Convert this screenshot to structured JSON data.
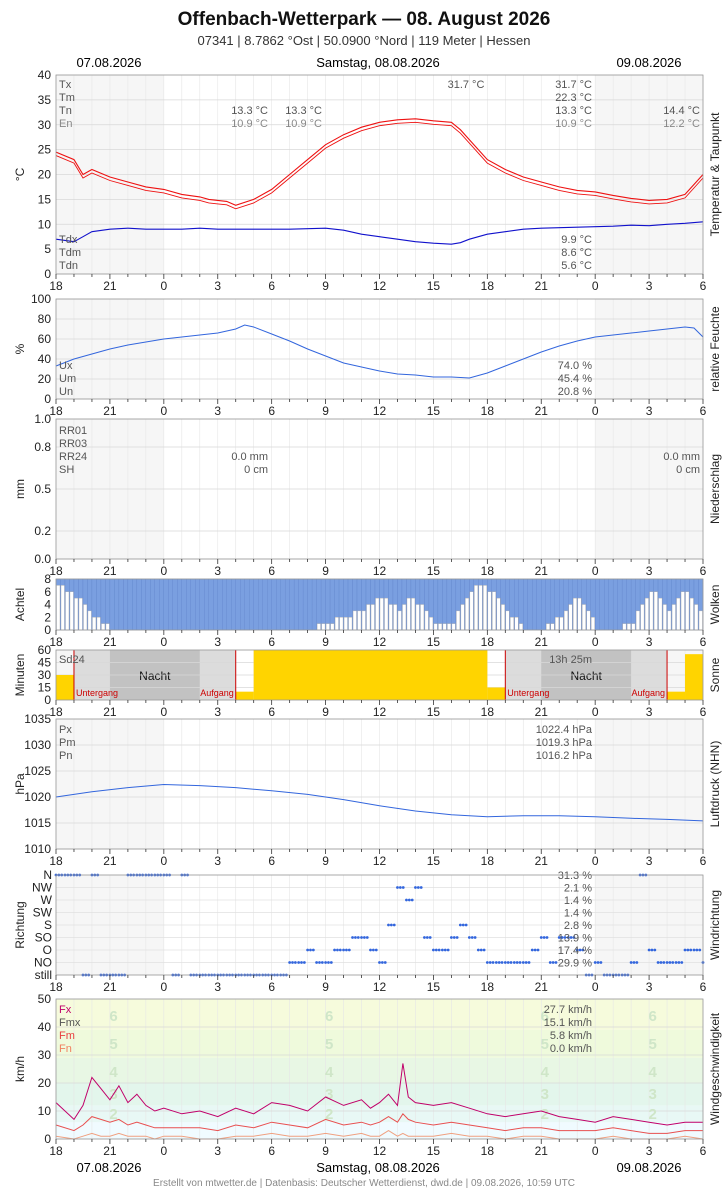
{
  "header": {
    "title": "Offenbach-Wetterpark  —  08. August 2026",
    "subtitle": "07341  |  8.7862 °Ost  |  50.0900 °Nord  |  119 Meter  |  Hessen",
    "date_left": "07.08.2026",
    "date_center": "Samstag, 08.08.2026",
    "date_right": "09.08.2026"
  },
  "footer": {
    "credit": "Erstellt von mtwetter.de | Datenbasis: Deutscher Wetterdienst, dwd.de | 09.08.2026, 10:59 UTC"
  },
  "x_ticks": [
    "18",
    "21",
    "0",
    "3",
    "6",
    "9",
    "12",
    "15",
    "18",
    "21",
    "0",
    "3",
    "6"
  ],
  "colors": {
    "temp": "#ee1111",
    "dew": "#1111cc",
    "blue": "#3366dd",
    "sun": "#ffd400",
    "cloud": "#7a9fe0",
    "wind_fx": "#c0006a",
    "wind_fm": "#e85050",
    "wind_fn": "#f0a080"
  },
  "chart_data": [
    {
      "id": "temp",
      "type": "line",
      "side_label": "Temperatur & Taupunkt",
      "ylabel": "°C",
      "ylim": [
        0,
        40
      ],
      "yticks": [
        "0",
        "5",
        "10",
        "15",
        "20",
        "25",
        "30",
        "35",
        "40"
      ],
      "labels_left": [
        "Tx",
        "Tm",
        "Tn",
        "En"
      ],
      "labels_left2": [
        "Tdx",
        "Tdm",
        "Tdn"
      ],
      "annotations": [
        {
          "text": "31.7 °C",
          "anchor": "peak"
        },
        {
          "text": "13.3 °C",
          "row": "Tn",
          "col": "a"
        },
        {
          "text": "10.9 °C",
          "row": "En",
          "col": "a"
        },
        {
          "text": "13.3 °C",
          "row": "Tn",
          "col": "b"
        },
        {
          "text": "10.9 °C",
          "row": "En",
          "col": "b"
        },
        {
          "text": "31.7 °C",
          "row": "Tx",
          "col": "c"
        },
        {
          "text": "22.3 °C",
          "row": "Tm",
          "col": "c"
        },
        {
          "text": "13.3 °C",
          "row": "Tn",
          "col": "c"
        },
        {
          "text": "10.9 °C",
          "row": "En",
          "col": "c"
        },
        {
          "text": "14.4 °C",
          "row": "Tn",
          "col": "d"
        },
        {
          "text": "12.2 °C",
          "row": "En",
          "col": "d"
        },
        {
          "text": "9.9 °C",
          "row": "Tdx",
          "col": "c"
        },
        {
          "text": "8.6 °C",
          "row": "Tdm",
          "col": "c"
        },
        {
          "text": "5.6 °C",
          "row": "Tdn",
          "col": "c"
        }
      ],
      "x_hours": [
        -6,
        -5,
        -4.5,
        -4,
        -3,
        -2,
        -1,
        0,
        1,
        2,
        2.5,
        3,
        3.5,
        4,
        5,
        6,
        7,
        8,
        9,
        10,
        11,
        12,
        13,
        14,
        15,
        16,
        16.5,
        17,
        18,
        19,
        20,
        21,
        22,
        23,
        24,
        25,
        26,
        27,
        28,
        29,
        30
      ],
      "series": [
        {
          "name": "Temperatur",
          "values": [
            24.5,
            23,
            20,
            21,
            19.5,
            18.5,
            17.5,
            17,
            16,
            15.5,
            15,
            14.8,
            14.6,
            13.8,
            15,
            17,
            20,
            23,
            26,
            28,
            29.5,
            30.5,
            31,
            31.2,
            30.8,
            30.5,
            29,
            27,
            23,
            21,
            19.5,
            18.5,
            17.5,
            16.8,
            16.5,
            15.8,
            15.2,
            14.8,
            15,
            16,
            20
          ]
        },
        {
          "name": "Taupunkt",
          "values": [
            7,
            6.5,
            7.5,
            8.5,
            9,
            9.2,
            9,
            9,
            9,
            9.2,
            9.1,
            9,
            9,
            9,
            9,
            9,
            9,
            9.1,
            9.2,
            8.8,
            8,
            7.5,
            7,
            6.5,
            6.2,
            6,
            6.3,
            7,
            8,
            8.5,
            9,
            9.2,
            9.3,
            9.4,
            9.5,
            9.6,
            9.8,
            9.7,
            10,
            10.2,
            10.5
          ]
        }
      ]
    },
    {
      "id": "hum",
      "type": "line",
      "side_label": "relative Feuchte",
      "ylabel": "%",
      "ylim": [
        0,
        100
      ],
      "yticks": [
        "0",
        "20",
        "40",
        "60",
        "80",
        "100"
      ],
      "labels_left": [
        "Ux",
        "Um",
        "Un"
      ],
      "annotations": [
        {
          "text": "74.0 %",
          "row": 0
        },
        {
          "text": "45.4 %",
          "row": 1
        },
        {
          "text": "20.8 %",
          "row": 2
        }
      ],
      "x_hours": [
        -6,
        -5,
        -4,
        -3,
        -2,
        -1,
        0,
        1,
        2,
        3,
        4,
        4.5,
        5,
        6,
        7,
        8,
        9,
        10,
        11,
        12,
        13,
        14,
        15,
        16,
        17,
        18,
        19,
        20,
        21,
        22,
        23,
        24,
        25,
        26,
        27,
        28,
        29,
        29.5,
        30
      ],
      "series": [
        {
          "name": "Feuchte",
          "values": [
            33,
            40,
            45,
            50,
            54,
            57,
            60,
            62,
            64,
            66,
            70,
            74,
            72,
            65,
            58,
            50,
            43,
            36,
            32,
            28,
            25,
            24,
            22,
            22,
            21,
            26,
            33,
            40,
            47,
            53,
            58,
            62,
            64,
            66,
            68,
            70,
            72,
            71,
            62
          ]
        }
      ]
    },
    {
      "id": "rain",
      "type": "bar",
      "side_label": "Niederschlag",
      "ylabel": "mm",
      "ylim": [
        0,
        1
      ],
      "yticks": [
        "0.0",
        "0.2",
        "0.5",
        "0.8",
        "1.0"
      ],
      "labels_left": [
        "RR01",
        "RR03",
        "RR24",
        "SH"
      ],
      "annotations": [
        {
          "text": "0.0 mm",
          "row": 2,
          "col": "a"
        },
        {
          "text": "0 cm",
          "row": 3,
          "col": "a"
        },
        {
          "text": "0.0 mm",
          "row": 2,
          "col": "d"
        },
        {
          "text": "0 cm",
          "row": 3,
          "col": "d"
        }
      ],
      "values": []
    },
    {
      "id": "cloud",
      "type": "bar",
      "side_label": "Wolken",
      "ylabel": "Achtel",
      "ylim": [
        0,
        8
      ],
      "yticks": [
        "0",
        "2",
        "4",
        "6",
        "8"
      ],
      "x_hours": [
        -6,
        -5.5,
        -5,
        -4.5,
        -4,
        -3.5,
        -3,
        -1,
        2,
        4,
        6,
        8,
        9,
        10,
        11,
        11.5,
        12,
        12.5,
        13,
        13.5,
        14,
        14.5,
        15,
        16,
        16.5,
        17,
        17.5,
        18,
        18.5,
        19,
        20,
        21,
        22,
        22.5,
        23,
        23.5,
        24,
        25,
        26,
        26.5,
        27,
        27.5,
        28,
        28.5,
        29,
        29.5,
        30
      ],
      "values": [
        7,
        6,
        5,
        4,
        2,
        1,
        0,
        0,
        0,
        0,
        0,
        0,
        1,
        2,
        3,
        4,
        5,
        4,
        3,
        5,
        4,
        3,
        1,
        1,
        4,
        6,
        7,
        6,
        5,
        3,
        0,
        0,
        2,
        4,
        5,
        3,
        0,
        0,
        1,
        4,
        6,
        5,
        3,
        5,
        6,
        4,
        2
      ]
    },
    {
      "id": "sun",
      "type": "bar",
      "side_label": "Sonne",
      "ylabel": "Minuten",
      "ylim": [
        0,
        60
      ],
      "yticks": [
        "0",
        "15",
        "30",
        "45",
        "60"
      ],
      "labels_left": [
        "Sd24"
      ],
      "night_label": "Nacht",
      "rise_label": "Aufgang",
      "set_label": "Untergang",
      "annotations": [
        {
          "text": "13h 25m"
        }
      ],
      "segments": [
        {
          "from": -6,
          "to": -5,
          "value": 30
        },
        {
          "from": 4,
          "to": 5,
          "value": 10
        },
        {
          "from": 5,
          "to": 18,
          "value": 60
        },
        {
          "from": 18,
          "to": 19,
          "value": 15
        },
        {
          "from": 28,
          "to": 29,
          "value": 10
        },
        {
          "from": 29,
          "to": 30,
          "value": 55
        }
      ],
      "sunset_hours": [
        -5,
        19
      ],
      "sunrise_hours": [
        4,
        28
      ]
    },
    {
      "id": "pres",
      "type": "line",
      "side_label": "Luftdruck (NHN)",
      "ylabel": "hPa",
      "ylim": [
        1010,
        1035
      ],
      "yticks": [
        "1010",
        "1015",
        "1020",
        "1025",
        "1030",
        "1035"
      ],
      "labels_left": [
        "Px",
        "Pm",
        "Pn"
      ],
      "annotations": [
        {
          "text": "1022.4 hPa",
          "row": 0
        },
        {
          "text": "1019.3 hPa",
          "row": 1
        },
        {
          "text": "1016.2 hPa",
          "row": 2
        }
      ],
      "x_hours": [
        -6,
        -4,
        -2,
        0,
        2,
        4,
        6,
        8,
        10,
        12,
        14,
        16,
        18,
        20,
        22,
        24,
        26,
        28,
        30
      ],
      "series": [
        {
          "name": "Luftdruck",
          "values": [
            1020,
            1021,
            1021.8,
            1022.4,
            1022.2,
            1021.8,
            1021.2,
            1020.5,
            1019.5,
            1018.3,
            1017.3,
            1016.6,
            1016.2,
            1016.4,
            1016.4,
            1016.2,
            1015.9,
            1015.7,
            1015.4
          ]
        }
      ]
    },
    {
      "id": "dir",
      "type": "scatter",
      "side_label": "Windrichtung",
      "ylabel": "Richtung",
      "categories": [
        "still",
        "NO",
        "O",
        "SO",
        "S",
        "SW",
        "W",
        "NW",
        "N"
      ],
      "labels_right": [
        "31.3 %",
        "2.1 %",
        "1.4 %",
        "1.4 %",
        "2.8 %",
        "13.9 %",
        "17.4 %",
        "29.9 %"
      ],
      "x_hours": [
        -6,
        -5.5,
        -5,
        -4.5,
        -4,
        -3.5,
        -3,
        -2.5,
        -2,
        -1.5,
        -1,
        -0.5,
        0,
        0.5,
        1,
        1.5,
        2,
        2.5,
        3,
        3.5,
        4,
        4.5,
        5,
        5.5,
        6,
        6.5,
        7,
        7.5,
        8,
        8.5,
        9,
        9.5,
        10,
        10.5,
        11,
        11.5,
        12,
        12.5,
        13,
        13.5,
        14,
        14.5,
        15,
        15.5,
        16,
        16.5,
        17,
        17.5,
        18,
        18.5,
        19,
        19.5,
        20,
        20.5,
        21,
        21.5,
        22,
        22.5,
        23,
        23.5,
        24,
        24.5,
        25,
        25.5,
        26,
        26.5,
        27,
        27.5,
        28,
        28.5,
        29,
        29.5,
        30
      ],
      "values": [
        8,
        8,
        8,
        0,
        8,
        0,
        0,
        0,
        8,
        8,
        8,
        8,
        8,
        0,
        8,
        0,
        0,
        0,
        0,
        0,
        0,
        0,
        0,
        0,
        0,
        0,
        1,
        1,
        2,
        1,
        1,
        2,
        2,
        3,
        3,
        2,
        1,
        4,
        7,
        6,
        7,
        3,
        2,
        2,
        3,
        4,
        3,
        2,
        1,
        1,
        1,
        1,
        1,
        2,
        3,
        1,
        3,
        3,
        2,
        0,
        1,
        0,
        0,
        0,
        1,
        8,
        2,
        1,
        1,
        1,
        2,
        2,
        1
      ]
    },
    {
      "id": "wind",
      "type": "line",
      "side_label": "Windgeschwindigkeit",
      "ylabel": "km/h",
      "ylim": [
        0,
        50
      ],
      "yticks": [
        "0",
        "10",
        "20",
        "30",
        "40",
        "50"
      ],
      "labels_left": [
        "Fx",
        "Fmx",
        "Fm",
        "Fn"
      ],
      "annotations": [
        {
          "text": "27.7 km/h",
          "row": 0
        },
        {
          "text": "15.1 km/h",
          "row": 1
        },
        {
          "text": "5.8 km/h",
          "row": 2
        },
        {
          "text": "0.0 km/h",
          "row": 3
        }
      ],
      "bft_labels": [
        "2",
        "3",
        "4",
        "5",
        "6"
      ],
      "x_hours": [
        -6,
        -5,
        -4.5,
        -4,
        -3.5,
        -3,
        -2.5,
        -2,
        -1.5,
        -1,
        -0.5,
        0,
        1,
        2,
        3,
        4,
        5,
        6,
        7,
        8,
        9,
        10,
        11,
        11.5,
        12,
        12.5,
        13,
        13.3,
        13.6,
        14,
        15,
        16,
        17,
        18,
        19,
        20,
        21,
        22,
        23,
        24,
        25,
        26,
        27,
        28,
        29,
        30
      ],
      "series": [
        {
          "name": "Fx",
          "values": [
            13,
            7,
            12,
            22,
            18,
            14,
            19,
            13,
            16,
            12,
            10,
            11,
            9,
            10,
            8,
            11,
            9,
            13,
            12,
            10,
            15,
            12,
            14,
            11,
            13,
            16,
            12,
            27,
            15,
            13,
            12,
            13,
            11,
            9,
            8,
            9,
            10,
            8,
            7,
            6,
            8,
            7,
            6,
            5,
            6,
            6
          ]
        },
        {
          "name": "Fm",
          "values": [
            5,
            3,
            5,
            8,
            7,
            6,
            7,
            5,
            6,
            5,
            4,
            4,
            4,
            4,
            3,
            5,
            4,
            6,
            5,
            4,
            7,
            5,
            6,
            5,
            6,
            8,
            6,
            9,
            7,
            6,
            5,
            6,
            5,
            4,
            3,
            4,
            4,
            3,
            3,
            3,
            4,
            3,
            2,
            2,
            3,
            3
          ]
        },
        {
          "name": "Fn",
          "values": [
            1,
            0,
            1,
            2,
            1,
            1,
            2,
            1,
            1,
            1,
            0,
            1,
            1,
            0,
            0,
            1,
            1,
            2,
            1,
            1,
            2,
            1,
            2,
            1,
            1,
            3,
            1,
            2,
            1,
            1,
            1,
            2,
            1,
            1,
            0,
            1,
            1,
            0,
            0,
            0,
            1,
            0,
            0,
            0,
            1,
            0
          ]
        }
      ]
    }
  ]
}
